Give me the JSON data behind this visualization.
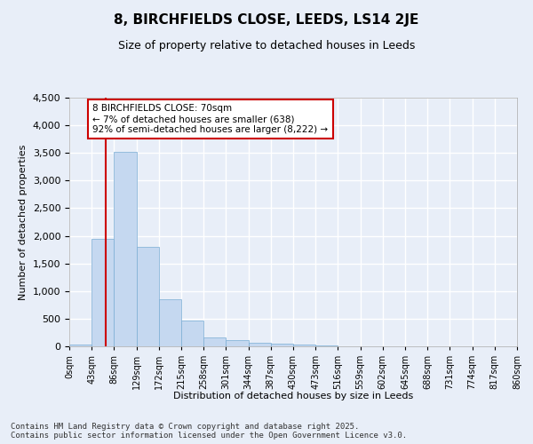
{
  "title": "8, BIRCHFIELDS CLOSE, LEEDS, LS14 2JE",
  "subtitle": "Size of property relative to detached houses in Leeds",
  "xlabel": "Distribution of detached houses by size in Leeds",
  "ylabel": "Number of detached properties",
  "bar_color": "#c5d8f0",
  "bar_edge_color": "#7aadd4",
  "red_line_x": 70,
  "annotation_text": "8 BIRCHFIELDS CLOSE: 70sqm\n← 7% of detached houses are smaller (638)\n92% of semi-detached houses are larger (8,222) →",
  "annotation_box_color": "#ffffff",
  "annotation_edge_color": "#cc0000",
  "footnote1": "Contains HM Land Registry data © Crown copyright and database right 2025.",
  "footnote2": "Contains public sector information licensed under the Open Government Licence v3.0.",
  "background_color": "#e8eef8",
  "grid_color": "#ffffff",
  "bin_edges": [
    0,
    43,
    86,
    129,
    172,
    215,
    258,
    301,
    344,
    387,
    430,
    473,
    516,
    559,
    602,
    645,
    688,
    731,
    774,
    817,
    860
  ],
  "bin_counts": [
    30,
    1950,
    3520,
    1800,
    850,
    460,
    160,
    110,
    70,
    50,
    30,
    10,
    5,
    2,
    1,
    1,
    0,
    0,
    0,
    0
  ],
  "ylim": [
    0,
    4500
  ],
  "xlim": [
    0,
    860
  ],
  "yticks": [
    0,
    500,
    1000,
    1500,
    2000,
    2500,
    3000,
    3500,
    4000,
    4500
  ],
  "xtick_labels": [
    "0sqm",
    "43sqm",
    "86sqm",
    "129sqm",
    "172sqm",
    "215sqm",
    "258sqm",
    "301sqm",
    "344sqm",
    "387sqm",
    "430sqm",
    "473sqm",
    "516sqm",
    "559sqm",
    "602sqm",
    "645sqm",
    "688sqm",
    "731sqm",
    "774sqm",
    "817sqm",
    "860sqm"
  ]
}
